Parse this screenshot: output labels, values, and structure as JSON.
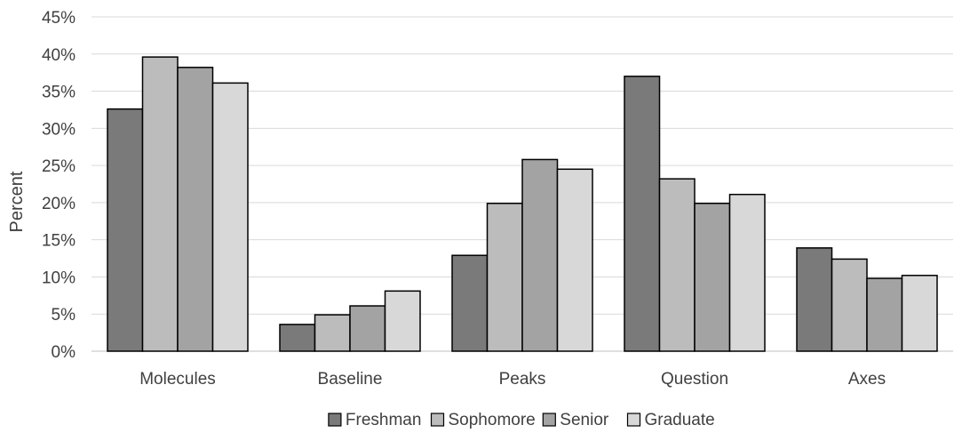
{
  "chart_data": {
    "type": "bar",
    "xlabel": "",
    "ylabel": "Percent",
    "ylim": [
      0,
      45
    ],
    "ytick_step": 5,
    "ytick_labels": [
      "0%",
      "5%",
      "10%",
      "15%",
      "20%",
      "25%",
      "30%",
      "35%",
      "40%",
      "45%"
    ],
    "grid": true,
    "legend_position": "bottom",
    "categories": [
      "Molecules",
      "Baseline",
      "Peaks",
      "Question",
      "Axes"
    ],
    "series": [
      {
        "name": "Freshman",
        "color": "#7a7a7a",
        "values": [
          32.6,
          3.6,
          12.9,
          37.0,
          13.9
        ]
      },
      {
        "name": "Sophomore",
        "color": "#bcbcbc",
        "values": [
          39.6,
          4.9,
          19.9,
          23.2,
          12.4
        ]
      },
      {
        "name": "Senior",
        "color": "#a3a3a3",
        "values": [
          38.2,
          6.1,
          25.8,
          19.9,
          9.8
        ]
      },
      {
        "name": "Graduate",
        "color": "#d8d8d8",
        "values": [
          36.1,
          8.1,
          24.5,
          21.1,
          10.2
        ]
      }
    ]
  }
}
